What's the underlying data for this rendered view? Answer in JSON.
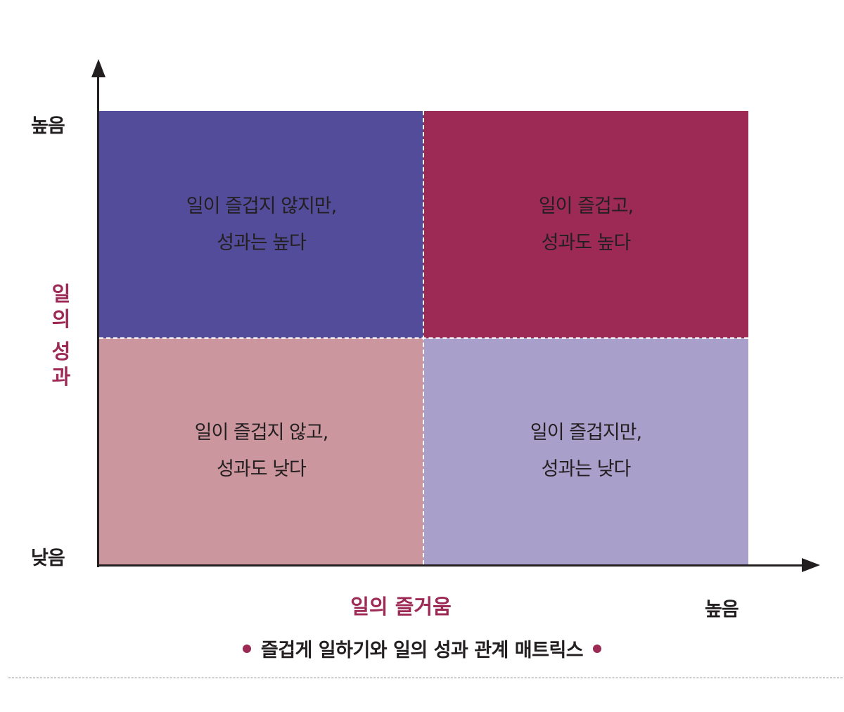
{
  "y_axis": {
    "title_chars": [
      "일",
      "의",
      "성",
      "과"
    ],
    "high_label": "높음",
    "low_label": "낮음"
  },
  "x_axis": {
    "title": "일의 즐거움",
    "high_label": "높음"
  },
  "quadrants": {
    "top_left": {
      "line1": "일이 즐겁지 않지만,",
      "line2": "성과는 높다",
      "color": "#524c9a"
    },
    "top_right": {
      "line1": "일이 즐겁고,",
      "line2": "성과도 높다",
      "color": "#9d2a55"
    },
    "bottom_left": {
      "line1": "일이 즐겁지 않고,",
      "line2": "성과도 낮다",
      "color": "#cc969e"
    },
    "bottom_right": {
      "line1": "일이 즐겁지만,",
      "line2": "성과는 낮다",
      "color": "#a99fcb"
    }
  },
  "caption": "즐겁게 일하기와 일의 성과 관계 매트릭스",
  "colors": {
    "accent": "#9d2a55",
    "text": "#231f20"
  }
}
